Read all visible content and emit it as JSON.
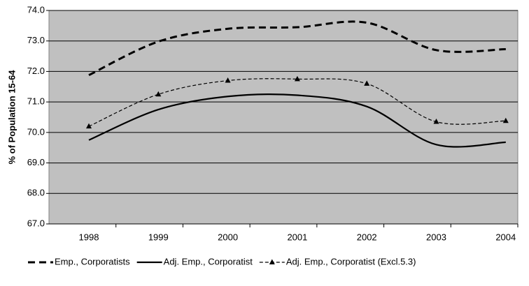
{
  "chart_data": {
    "type": "line",
    "y_label": "% of Population 15-64",
    "categories": [
      "1998",
      "1999",
      "2000",
      "2001",
      "2002",
      "2003",
      "2004"
    ],
    "series": [
      {
        "name": "Emp., Corporatists",
        "color": "#000000",
        "style": "dashed",
        "values": [
          71.88,
          72.98,
          73.4,
          73.45,
          73.6,
          72.7,
          72.73
        ]
      },
      {
        "name": "Adj. Emp., Corporatist",
        "color": "#000000",
        "style": "solid",
        "values": [
          69.75,
          70.75,
          71.18,
          71.22,
          70.85,
          69.6,
          69.68
        ]
      },
      {
        "name": "Adj. Emp., Corporatist (Excl.5.3)",
        "color": "#000000",
        "style": "thin-dashed-triangle",
        "values": [
          70.2,
          71.25,
          71.7,
          71.75,
          71.6,
          70.35,
          70.38
        ]
      }
    ],
    "ylim": [
      67,
      74
    ],
    "yticks": [
      {
        "value": 67,
        "label": "67.0"
      },
      {
        "value": 68,
        "label": "68.0"
      },
      {
        "value": 69,
        "label": "69.0"
      },
      {
        "value": 70,
        "label": "70.0"
      },
      {
        "value": 71,
        "label": "71.0"
      },
      {
        "value": 72,
        "label": "72.0"
      },
      {
        "value": 73,
        "label": "73.0"
      },
      {
        "value": 74,
        "label": "74.0"
      }
    ],
    "grid": true,
    "background": "#c0c0c0",
    "legend": "bottom"
  }
}
